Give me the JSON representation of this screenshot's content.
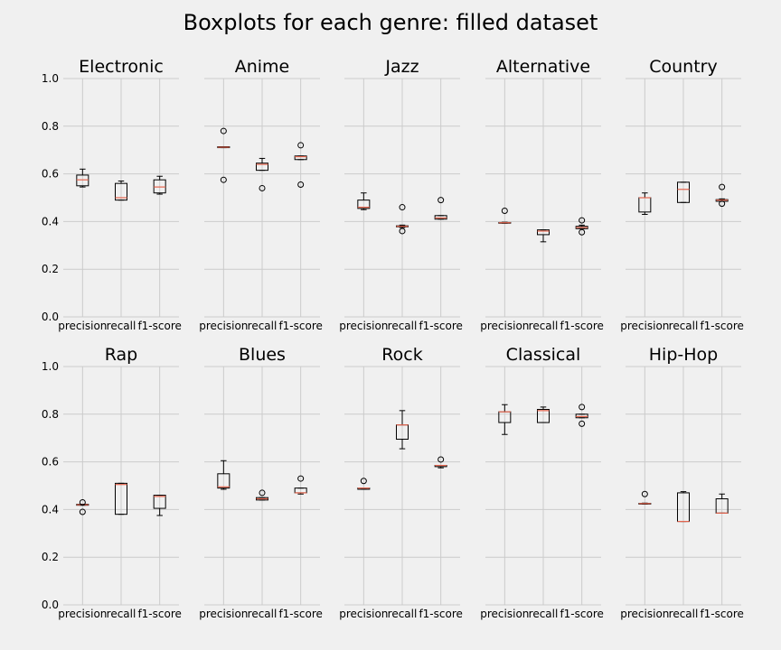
{
  "chart_data": {
    "type": "boxplot",
    "title": "Boxplots for each genre: filled dataset",
    "metrics": [
      "precision",
      "recall",
      "f1-score"
    ],
    "ylim": [
      0,
      1
    ],
    "yticks": [
      "0.0",
      "0.2",
      "0.4",
      "0.6",
      "0.8",
      "1.0"
    ],
    "grid": true,
    "panels": [
      {
        "name": "Electronic",
        "boxes": [
          {
            "whislo": 0.545,
            "q1": 0.55,
            "med": 0.575,
            "q3": 0.595,
            "whishi": 0.62,
            "fliers": []
          },
          {
            "whislo": 0.49,
            "q1": 0.49,
            "med": 0.5,
            "q3": 0.56,
            "whishi": 0.57,
            "fliers": []
          },
          {
            "whislo": 0.515,
            "q1": 0.52,
            "med": 0.545,
            "q3": 0.575,
            "whishi": 0.59,
            "fliers": []
          }
        ]
      },
      {
        "name": "Anime",
        "boxes": [
          {
            "whislo": 0.71,
            "q1": 0.71,
            "med": 0.712,
            "q3": 0.714,
            "whishi": 0.714,
            "fliers": [
              0.78,
              0.575
            ]
          },
          {
            "whislo": 0.615,
            "q1": 0.615,
            "med": 0.64,
            "q3": 0.645,
            "whishi": 0.665,
            "fliers": [
              0.54
            ]
          },
          {
            "whislo": 0.66,
            "q1": 0.66,
            "med": 0.672,
            "q3": 0.675,
            "whishi": 0.675,
            "fliers": [
              0.72,
              0.555
            ]
          }
        ]
      },
      {
        "name": "Jazz",
        "boxes": [
          {
            "whislo": 0.45,
            "q1": 0.455,
            "med": 0.46,
            "q3": 0.49,
            "whishi": 0.52,
            "fliers": []
          },
          {
            "whislo": 0.375,
            "q1": 0.378,
            "med": 0.38,
            "q3": 0.382,
            "whishi": 0.385,
            "fliers": [
              0.46,
              0.36
            ]
          },
          {
            "whislo": 0.41,
            "q1": 0.41,
            "med": 0.415,
            "q3": 0.425,
            "whishi": 0.425,
            "fliers": [
              0.49
            ]
          }
        ]
      },
      {
        "name": "Alternative",
        "boxes": [
          {
            "whislo": 0.393,
            "q1": 0.394,
            "med": 0.395,
            "q3": 0.396,
            "whishi": 0.397,
            "fliers": [
              0.445
            ]
          },
          {
            "whislo": 0.315,
            "q1": 0.345,
            "med": 0.36,
            "q3": 0.365,
            "whishi": 0.365,
            "fliers": []
          },
          {
            "whislo": 0.37,
            "q1": 0.37,
            "med": 0.375,
            "q3": 0.38,
            "whishi": 0.385,
            "fliers": [
              0.405,
              0.355
            ]
          }
        ]
      },
      {
        "name": "Country",
        "boxes": [
          {
            "whislo": 0.43,
            "q1": 0.44,
            "med": 0.5,
            "q3": 0.5,
            "whishi": 0.52,
            "fliers": []
          },
          {
            "whislo": 0.48,
            "q1": 0.48,
            "med": 0.535,
            "q3": 0.565,
            "whishi": 0.565,
            "fliers": []
          },
          {
            "whislo": 0.485,
            "q1": 0.485,
            "med": 0.49,
            "q3": 0.492,
            "whishi": 0.495,
            "fliers": [
              0.545,
              0.475
            ]
          }
        ]
      },
      {
        "name": "Rap",
        "boxes": [
          {
            "whislo": 0.418,
            "q1": 0.418,
            "med": 0.42,
            "q3": 0.422,
            "whishi": 0.422,
            "fliers": [
              0.43,
              0.39
            ]
          },
          {
            "whislo": 0.38,
            "q1": 0.38,
            "med": 0.505,
            "q3": 0.51,
            "whishi": 0.51,
            "fliers": []
          },
          {
            "whislo": 0.375,
            "q1": 0.405,
            "med": 0.455,
            "q3": 0.46,
            "whishi": 0.46,
            "fliers": []
          }
        ]
      },
      {
        "name": "Blues",
        "boxes": [
          {
            "whislo": 0.485,
            "q1": 0.49,
            "med": 0.495,
            "q3": 0.55,
            "whishi": 0.605,
            "fliers": []
          },
          {
            "whislo": 0.44,
            "q1": 0.44,
            "med": 0.445,
            "q3": 0.45,
            "whishi": 0.45,
            "fliers": [
              0.47
            ]
          },
          {
            "whislo": 0.465,
            "q1": 0.47,
            "med": 0.47,
            "q3": 0.49,
            "whishi": 0.49,
            "fliers": [
              0.53
            ]
          }
        ]
      },
      {
        "name": "Rock",
        "boxes": [
          {
            "whislo": 0.485,
            "q1": 0.485,
            "med": 0.49,
            "q3": 0.49,
            "whishi": 0.49,
            "fliers": [
              0.52
            ]
          },
          {
            "whislo": 0.655,
            "q1": 0.695,
            "med": 0.755,
            "q3": 0.755,
            "whishi": 0.815,
            "fliers": []
          },
          {
            "whislo": 0.575,
            "q1": 0.58,
            "med": 0.585,
            "q3": 0.585,
            "whishi": 0.585,
            "fliers": [
              0.61
            ]
          }
        ]
      },
      {
        "name": "Classical",
        "boxes": [
          {
            "whislo": 0.715,
            "q1": 0.765,
            "med": 0.81,
            "q3": 0.81,
            "whishi": 0.84,
            "fliers": []
          },
          {
            "whislo": 0.765,
            "q1": 0.765,
            "med": 0.815,
            "q3": 0.82,
            "whishi": 0.83,
            "fliers": []
          },
          {
            "whislo": 0.785,
            "q1": 0.785,
            "med": 0.79,
            "q3": 0.8,
            "whishi": 0.8,
            "fliers": [
              0.83,
              0.76
            ]
          }
        ]
      },
      {
        "name": "Hip-Hop",
        "boxes": [
          {
            "whislo": 0.423,
            "q1": 0.424,
            "med": 0.425,
            "q3": 0.426,
            "whishi": 0.427,
            "fliers": [
              0.465
            ]
          },
          {
            "whislo": 0.35,
            "q1": 0.35,
            "med": 0.35,
            "q3": 0.47,
            "whishi": 0.475,
            "fliers": []
          },
          {
            "whislo": 0.385,
            "q1": 0.385,
            "med": 0.385,
            "q3": 0.445,
            "whishi": 0.465,
            "fliers": []
          }
        ]
      }
    ]
  },
  "colors": {
    "background": "#f0f0f0",
    "grid": "#cbcbcb",
    "box": "#000000",
    "median": "#e5654e"
  }
}
